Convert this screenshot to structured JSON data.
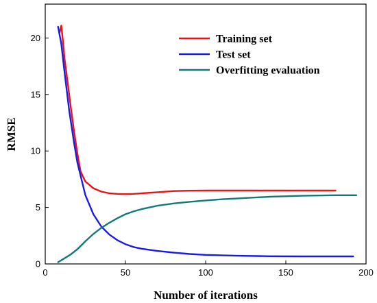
{
  "chart_data": {
    "type": "line",
    "title": "",
    "xlabel": "Number of iterations",
    "ylabel": "RMSE",
    "xlim": [
      0,
      200
    ],
    "ylim": [
      0,
      23
    ],
    "xticks": [
      0,
      50,
      100,
      150,
      200
    ],
    "yticks": [
      0,
      5,
      10,
      15,
      20
    ],
    "grid": false,
    "legend_position": "top-right",
    "series": [
      {
        "name": "Training set",
        "color": "#ee1111",
        "x": [
          9,
          10,
          11,
          12,
          14,
          16,
          18,
          20,
          22,
          25,
          30,
          35,
          40,
          45,
          50,
          55,
          60,
          70,
          80,
          90,
          100,
          120,
          140,
          160,
          181
        ],
        "y": [
          20.5,
          21.1,
          19.8,
          18.2,
          16.0,
          13.8,
          11.7,
          9.8,
          8.2,
          7.3,
          6.7,
          6.4,
          6.25,
          6.2,
          6.18,
          6.2,
          6.25,
          6.35,
          6.45,
          6.48,
          6.5,
          6.5,
          6.5,
          6.5,
          6.5
        ]
      },
      {
        "name": "Test set",
        "color": "#1a1ae6",
        "x": [
          8,
          10,
          12,
          15,
          18,
          20,
          25,
          30,
          35,
          40,
          45,
          50,
          55,
          60,
          70,
          80,
          90,
          100,
          120,
          140,
          160,
          180,
          192
        ],
        "y": [
          21.0,
          19.5,
          17.0,
          13.5,
          10.7,
          9.0,
          6.1,
          4.4,
          3.3,
          2.6,
          2.1,
          1.75,
          1.5,
          1.35,
          1.15,
          1.0,
          0.88,
          0.8,
          0.72,
          0.68,
          0.67,
          0.67,
          0.67
        ]
      },
      {
        "name": "Overfitting evaluation",
        "color": "#117a78",
        "x": [
          8,
          12,
          16,
          20,
          25,
          30,
          35,
          40,
          45,
          50,
          55,
          60,
          70,
          80,
          90,
          100,
          110,
          120,
          140,
          160,
          180,
          194
        ],
        "y": [
          0.15,
          0.5,
          0.85,
          1.3,
          2.0,
          2.65,
          3.2,
          3.65,
          4.05,
          4.4,
          4.65,
          4.85,
          5.15,
          5.35,
          5.5,
          5.62,
          5.72,
          5.8,
          5.95,
          6.03,
          6.08,
          6.08
        ]
      }
    ]
  }
}
